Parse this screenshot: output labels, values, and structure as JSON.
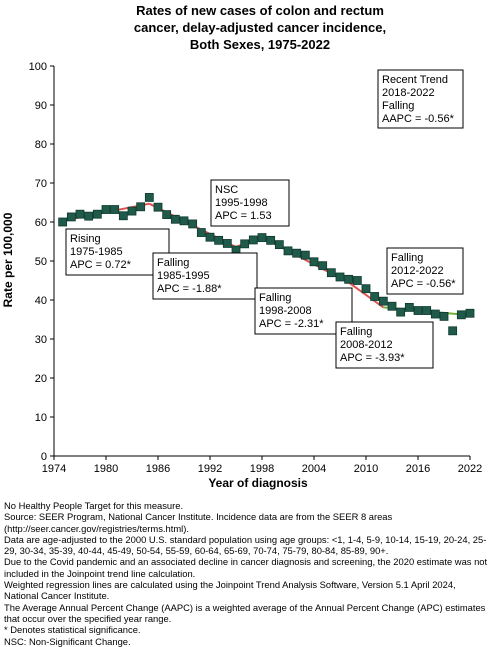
{
  "title_lines": [
    "Rates of new cases of colon and rectum",
    "cancer, delay-adjusted cancer incidence,",
    "Both Sexes,  1975-2022"
  ],
  "colors": {
    "point_fill": "#1f5a4a",
    "point_stroke": "#0f3a2e",
    "trend_line": "#e0524d",
    "trend_line_recent": "#74b03c",
    "axis": "#000000",
    "background": "#ffffff"
  },
  "chart_data": {
    "type": "scatter",
    "title": "Rates of new cases of colon and rectum cancer, delay-adjusted cancer incidence, Both Sexes,  1975-2022",
    "xlabel": "Year of diagnosis",
    "ylabel": "Rate per 100,000",
    "xlim": [
      1974,
      2022
    ],
    "ylim": [
      0,
      100
    ],
    "x_ticks": [
      1974,
      1980,
      1986,
      1992,
      1998,
      2004,
      2010,
      2016,
      2022
    ],
    "y_ticks": [
      0,
      10,
      20,
      30,
      40,
      50,
      60,
      70,
      80,
      90,
      100
    ],
    "grid": false,
    "series": [
      {
        "kind": "observed",
        "x": [
          1975,
          1976,
          1977,
          1978,
          1979,
          1980,
          1981,
          1982,
          1983,
          1984,
          1985,
          1986,
          1987,
          1988,
          1989,
          1990,
          1991,
          1992,
          1993,
          1994,
          1995,
          1996,
          1997,
          1998,
          1999,
          2000,
          2001,
          2002,
          2003,
          2004,
          2005,
          2006,
          2007,
          2008,
          2009,
          2010,
          2011,
          2012,
          2013,
          2014,
          2015,
          2016,
          2017,
          2018,
          2019,
          2020,
          2021,
          2022
        ],
        "y": [
          60.0,
          61.3,
          62.0,
          61.5,
          62.0,
          63.2,
          63.2,
          61.6,
          62.8,
          63.9,
          66.3,
          63.8,
          61.9,
          60.7,
          60.3,
          59.5,
          57.3,
          56.1,
          55.3,
          54.5,
          52.8,
          54.4,
          55.4,
          56.0,
          55.3,
          54.2,
          52.6,
          52.0,
          51.5,
          49.8,
          48.8,
          47.0,
          45.9,
          45.3,
          45.0,
          42.9,
          40.9,
          39.7,
          38.4,
          36.9,
          38.1,
          37.3,
          37.3,
          36.4,
          35.8,
          32.1,
          36.2,
          36.6
        ]
      },
      {
        "kind": "trend",
        "segments": [
          {
            "from": 1975,
            "to": 1985,
            "y_start": 60.3,
            "y_end": 64.7
          },
          {
            "from": 1985,
            "to": 1995,
            "y_start": 64.7,
            "y_end": 53.6
          },
          {
            "from": 1995,
            "to": 1998,
            "y_start": 53.6,
            "y_end": 56.1
          },
          {
            "from": 1998,
            "to": 2008,
            "y_start": 56.1,
            "y_end": 44.5
          },
          {
            "from": 2008,
            "to": 2012,
            "y_start": 44.5,
            "y_end": 38.1
          },
          {
            "from": 2012,
            "to": 2022,
            "y_start": 38.1,
            "y_end": 36.1
          }
        ]
      }
    ],
    "annotations": [
      {
        "lines": [
          "Rising",
          "1975-1985",
          "APC =  0.72*"
        ]
      },
      {
        "lines": [
          "Falling",
          "1985-1995",
          "APC = -1.88*"
        ]
      },
      {
        "lines": [
          "NSC",
          "1995-1998",
          "APC =  1.53"
        ]
      },
      {
        "lines": [
          "Falling",
          "1998-2008",
          "APC = -2.31*"
        ]
      },
      {
        "lines": [
          "Falling",
          "2008-2012",
          "APC = -3.93*"
        ]
      },
      {
        "lines": [
          "Falling",
          "2012-2022",
          "APC = -0.56*"
        ]
      },
      {
        "lines": [
          "Recent Trend",
          "2018-2022",
          "Falling",
          "AAPC = -0.56*"
        ]
      }
    ]
  },
  "footnotes": [
    "No Healthy People Target for this measure.",
    "Source: SEER Program, National Cancer Institute. Incidence data are from the SEER 8 areas (http://seer.cancer.gov/registries/terms.html).",
    "Data are age-adjusted to the 2000 U.S. standard population using age groups: <1, 1-4, 5-9, 10-14, 15-19, 20-24, 25-29, 30-34, 35-39, 40-44, 45-49, 50-54, 55-59, 60-64, 65-69, 70-74, 75-79, 80-84, 85-89, 90+.",
    "Due to the Covid pandemic and an associated decline in cancer diagnosis and screening, the 2020 estimate was not included in the Joinpoint trend line calculation.",
    "Weighted regression lines are calculated using the Joinpoint Trend Analysis Software, Version 5.1 April 2024, National Cancer Institute.",
    "The Average Annual Percent Change (AAPC) is a weighted average of the Annual Percent Change (APC) estimates that occur over the specified year range.",
    "* Denotes statistical significance.",
    "NSC: Non-Significant Change."
  ]
}
